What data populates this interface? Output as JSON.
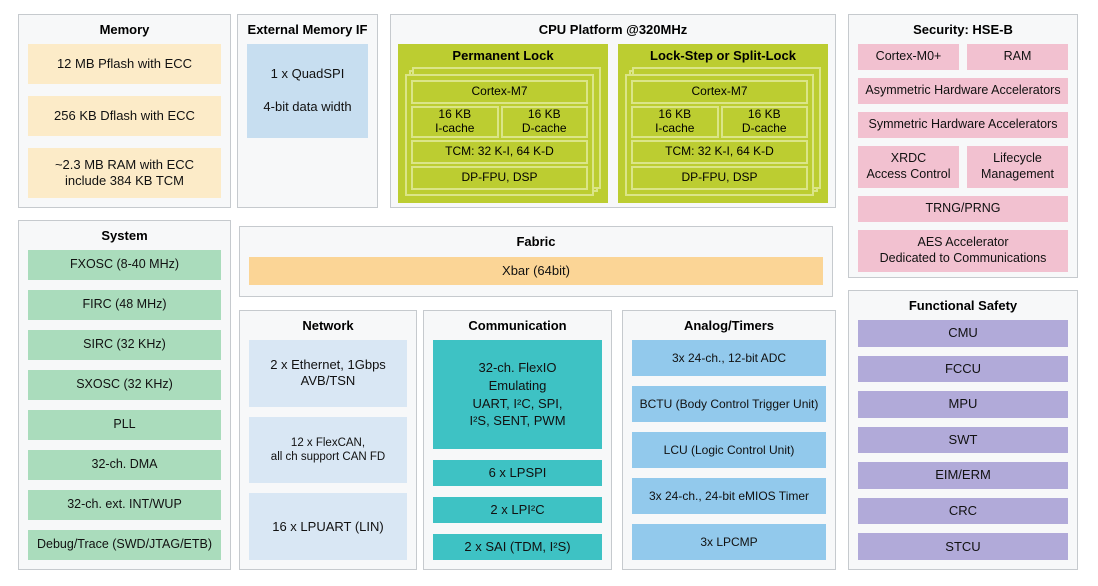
{
  "colors": {
    "panel_bg": "#f7f8f9",
    "panel_border": "#c6cace",
    "memory_cream": "#fcebc8",
    "fabric_orange": "#fbd596",
    "extif_blue": "#c7def0",
    "network_blue": "#d9e7f4",
    "analog_blue": "#92c9ec",
    "comm_teal": "#3ec2c4",
    "system_mint": "#aadcbc",
    "security_pink": "#f2c1d0",
    "safety_lavender": "#b1aad9",
    "cpu_lime": "#bccd31",
    "cpu_lime_light": "#dbe588"
  },
  "memory": {
    "title": "Memory",
    "items": [
      "12 MB Pflash with ECC",
      "256 KB Dflash with ECC",
      "~2.3 MB RAM with ECC\ninclude 384 KB TCM"
    ]
  },
  "external_memory_if": {
    "title": "External Memory IF",
    "item": "1 x QuadSPI\n\n4-bit data width"
  },
  "cpu": {
    "title": "CPU Platform @320MHz",
    "groups": [
      {
        "title": "Permanent Lock",
        "core": "Cortex-M7",
        "icache": "16 KB\nI-cache",
        "dcache": "16 KB\nD-cache",
        "tcm": "TCM: 32 K-I, 64 K-D",
        "fpu": "DP-FPU, DSP"
      },
      {
        "title": "Lock-Step or Split-Lock",
        "core": "Cortex-M7",
        "icache": "16 KB\nI-cache",
        "dcache": "16 KB\nD-cache",
        "tcm": "TCM: 32 K-I, 64 K-D",
        "fpu": "DP-FPU, DSP"
      }
    ]
  },
  "security": {
    "title": "Security: HSE-B",
    "cortex": "Cortex-M0+",
    "ram": "RAM",
    "asym": "Asymmetric Hardware Accelerators",
    "sym": "Symmetric Hardware Accelerators",
    "xrdc": "XRDC\nAccess Control",
    "lifecycle": "Lifecycle\nManagement",
    "trng": "TRNG/PRNG",
    "aes": "AES Accelerator\nDedicated to Communications"
  },
  "system": {
    "title": "System",
    "items": [
      "FXOSC (8-40 MHz)",
      "FIRC (48 MHz)",
      "SIRC (32 KHz)",
      "SXOSC (32 KHz)",
      "PLL",
      "32-ch. DMA",
      "32-ch. ext. INT/WUP",
      "Debug/Trace (SWD/JTAG/ETB)"
    ]
  },
  "fabric": {
    "title": "Fabric",
    "item": "Xbar (64bit)"
  },
  "network": {
    "title": "Network",
    "items": [
      "2 x Ethernet, 1Gbps\nAVB/TSN",
      "12 x FlexCAN,\nall ch support CAN FD",
      "16 x LPUART (LIN)"
    ]
  },
  "communication": {
    "title": "Communication",
    "flexio": "32-ch. FlexIO\nEmulating\nUART, I²C, SPI,\nI²S, SENT, PWM",
    "items": [
      "6 x LPSPI",
      "2 x LPI²C",
      "2 x SAI (TDM, I²S)"
    ]
  },
  "analog": {
    "title": "Analog/Timers",
    "items": [
      "3x 24-ch., 12-bit ADC",
      "BCTU (Body Control Trigger Unit)",
      "LCU (Logic Control Unit)",
      "3x 24-ch., 24-bit eMIOS Timer",
      "3x LPCMP"
    ]
  },
  "safety": {
    "title": "Functional Safety",
    "items": [
      "CMU",
      "FCCU",
      "MPU",
      "SWT",
      "EIM/ERM",
      "CRC",
      "STCU"
    ]
  }
}
